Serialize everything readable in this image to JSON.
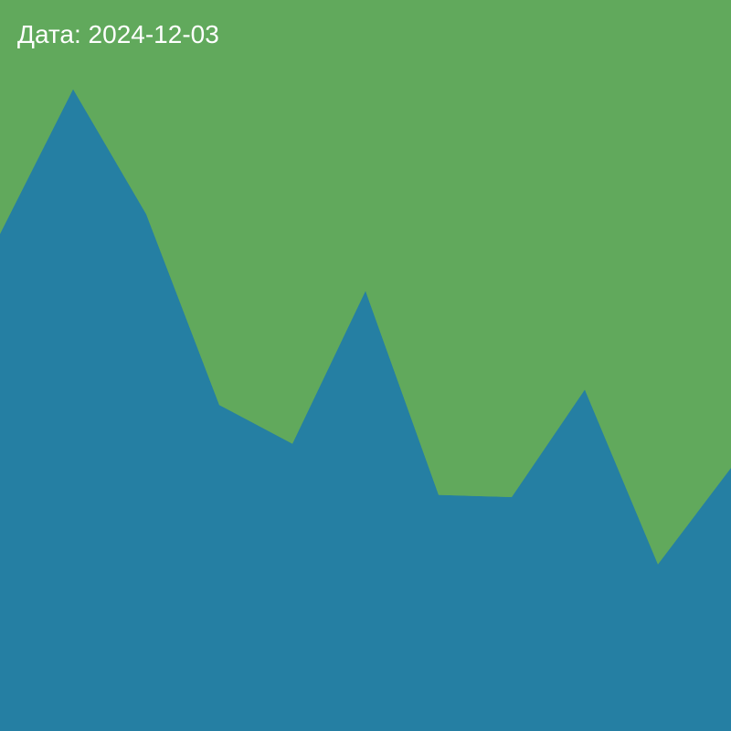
{
  "header": {
    "date_text": "Дата: 2024-12-03"
  },
  "chart_data": {
    "type": "area",
    "stacked": true,
    "normalized": true,
    "x": [
      0,
      1,
      2,
      3,
      4,
      5,
      6,
      7,
      8,
      9,
      10
    ],
    "ylim": [
      0,
      1
    ],
    "grid": false,
    "legend": "none",
    "series": [
      {
        "color": "#257fa3",
        "values": [
          0.68,
          0.878,
          0.707,
          0.446,
          0.393,
          0.602,
          0.323,
          0.32,
          0.467,
          0.228,
          0.36
        ]
      },
      {
        "color": "#61a95c",
        "values": [
          0.32,
          0.122,
          0.293,
          0.554,
          0.607,
          0.398,
          0.677,
          0.68,
          0.533,
          0.772,
          0.64
        ]
      }
    ]
  }
}
